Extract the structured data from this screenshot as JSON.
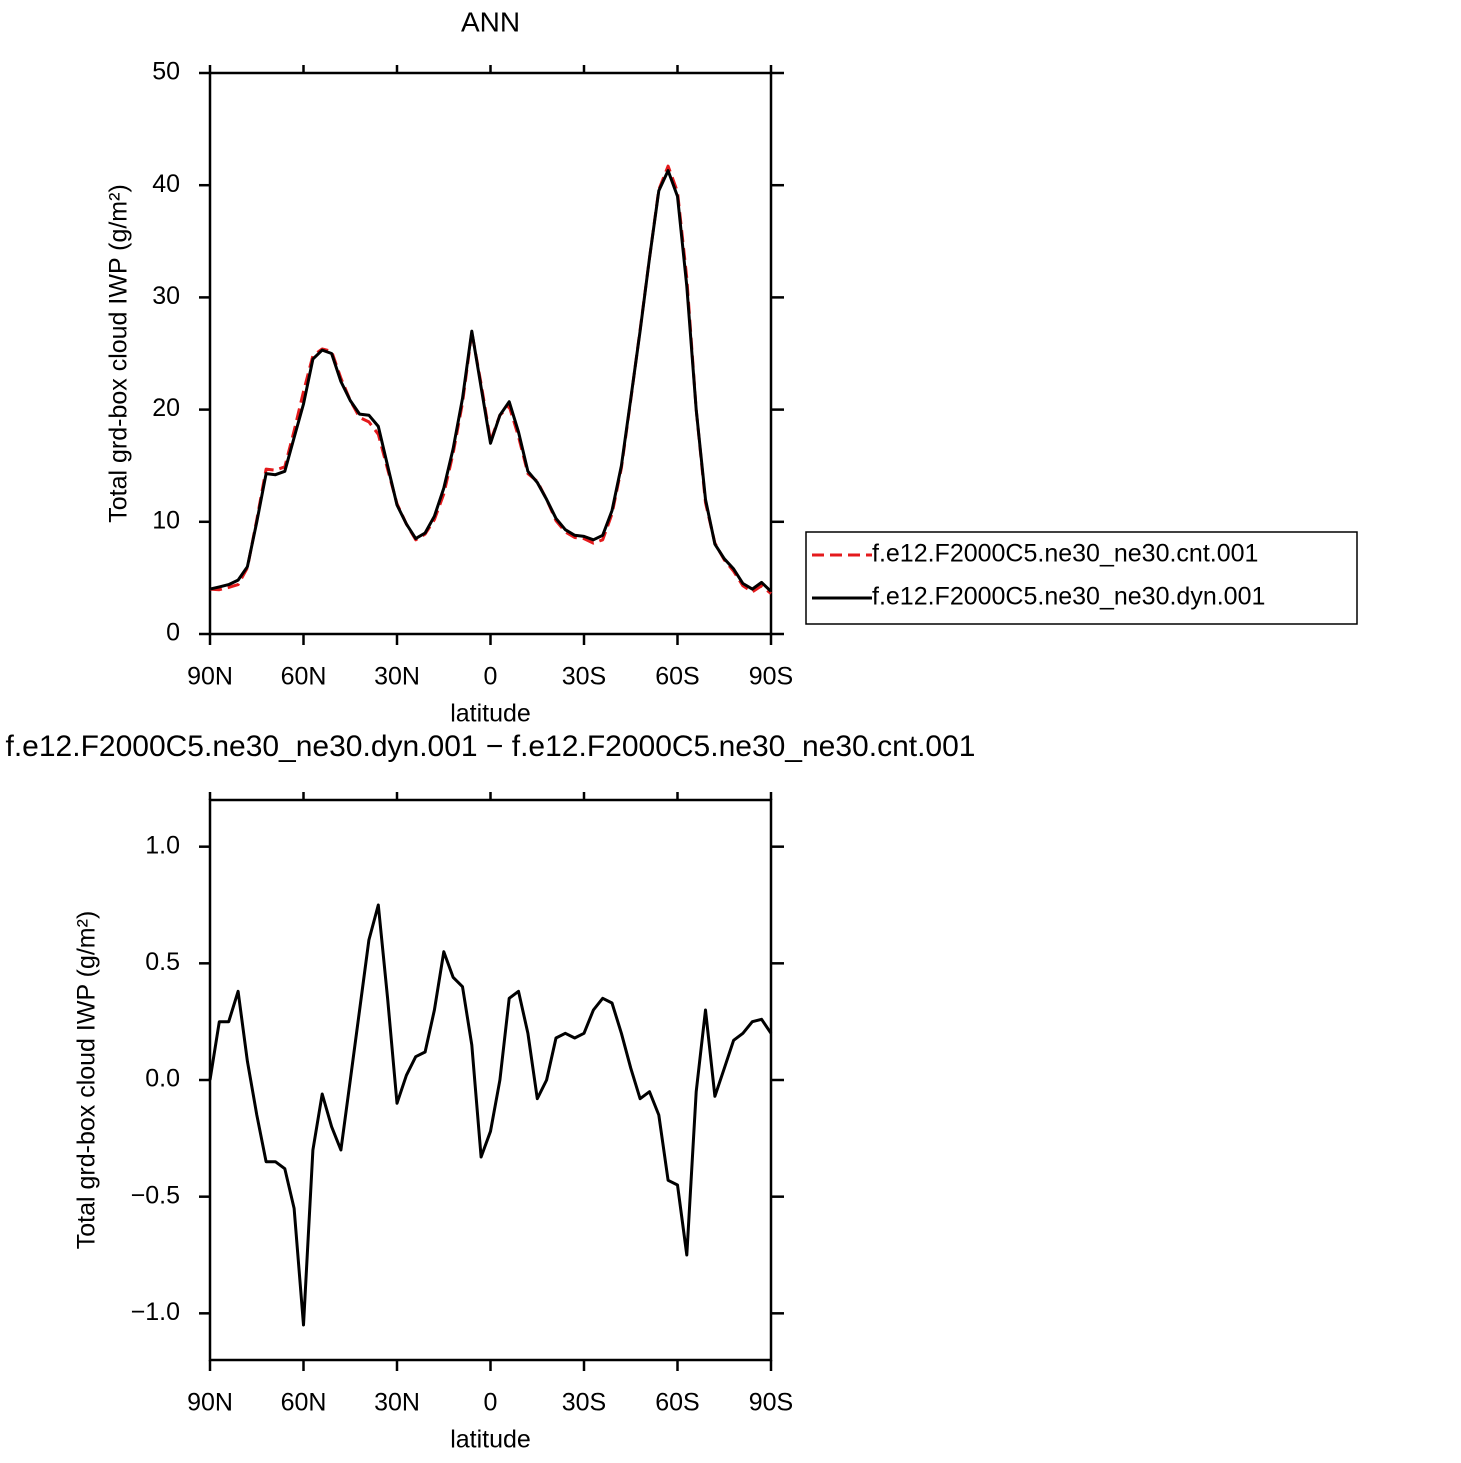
{
  "chart_data": [
    {
      "type": "line",
      "title": "ANN",
      "x_label": "latitude",
      "y_label": "Total grd-box cloud IWP (g/m²)",
      "x": [
        90,
        87,
        84,
        81,
        78,
        75,
        72,
        69,
        66,
        63,
        60,
        57,
        54,
        51,
        48,
        45,
        42,
        39,
        36,
        33,
        30,
        27,
        24,
        21,
        18,
        15,
        12,
        9,
        6,
        3,
        0,
        -3,
        -6,
        -9,
        -12,
        -15,
        -18,
        -21,
        -24,
        -27,
        -30,
        -33,
        -36,
        -39,
        -42,
        -45,
        -48,
        -51,
        -54,
        -57,
        -60,
        -63,
        -66,
        -69,
        -72,
        -75,
        -78,
        -81,
        -84,
        -87,
        -90
      ],
      "series": [
        {
          "name": "f.e12.F2000C5.ne30_ne30.cnt.001",
          "color": "#e41a1c",
          "line_style": "dashed",
          "values": [
            4.0,
            3.95,
            4.15,
            4.4,
            5.9,
            10.2,
            14.7,
            14.6,
            14.9,
            18.1,
            21.6,
            24.8,
            25.4,
            25.2,
            22.8,
            20.8,
            19.3,
            18.9,
            17.8,
            14.7,
            11.6,
            9.8,
            8.4,
            8.9,
            10.2,
            12.5,
            16.1,
            20.6,
            26.9,
            22.3,
            17.2,
            19.5,
            20.3,
            17.6,
            14.3,
            13.6,
            12.0,
            10.1,
            9.1,
            8.6,
            8.5,
            8.1,
            8.4,
            10.7,
            14.8,
            20.9,
            27.1,
            33.5,
            39.6,
            41.7,
            39.4,
            31.7,
            20.0,
            11.7,
            8.1,
            6.6,
            5.6,
            4.3,
            3.75,
            4.3,
            3.6
          ]
        },
        {
          "name": "f.e12.F2000C5.ne30_ne30.dyn.001",
          "color": "#000000",
          "line_style": "solid",
          "values": [
            4.0,
            4.2,
            4.4,
            4.8,
            6.0,
            10.0,
            14.3,
            14.2,
            14.5,
            17.5,
            20.5,
            24.5,
            25.3,
            25.0,
            22.5,
            20.8,
            19.6,
            19.5,
            18.5,
            15.0,
            11.5,
            9.8,
            8.5,
            9.0,
            10.5,
            13.0,
            16.5,
            21.0,
            27.0,
            22.0,
            17.0,
            19.5,
            20.7,
            18.0,
            14.5,
            13.5,
            12.0,
            10.3,
            9.3,
            8.8,
            8.7,
            8.4,
            8.8,
            11.0,
            15.0,
            21.0,
            27.0,
            33.5,
            39.5,
            41.3,
            39.0,
            31.0,
            20.0,
            12.0,
            8.0,
            6.7,
            5.8,
            4.5,
            4.0,
            4.6,
            3.8
          ]
        }
      ],
      "xlim": [
        90,
        -90
      ],
      "xticks": [
        {
          "value": 90,
          "label": "90N"
        },
        {
          "value": 60,
          "label": "60N"
        },
        {
          "value": 30,
          "label": "30N"
        },
        0,
        {
          "value": -30,
          "label": "30S"
        },
        {
          "value": -60,
          "label": "60S"
        },
        {
          "value": -90,
          "label": "90S"
        }
      ],
      "ylim": [
        0,
        50
      ],
      "yticks": [
        0,
        10,
        20,
        30,
        40,
        50
      ],
      "legend": "right"
    },
    {
      "type": "line",
      "title": "f.e12.F2000C5.ne30_ne30.dyn.001 − f.e12.F2000C5.ne30_ne30.cnt.001",
      "x_label": "latitude",
      "y_label": "Total grd-box cloud IWP (g/m²)",
      "x": [
        90,
        87,
        84,
        81,
        78,
        75,
        72,
        69,
        66,
        63,
        60,
        57,
        54,
        51,
        48,
        45,
        42,
        39,
        36,
        33,
        30,
        27,
        24,
        21,
        18,
        15,
        12,
        9,
        6,
        3,
        0,
        -3,
        -6,
        -9,
        -12,
        -15,
        -18,
        -21,
        -24,
        -27,
        -30,
        -33,
        -36,
        -39,
        -42,
        -45,
        -48,
        -51,
        -54,
        -57,
        -60,
        -63,
        -66,
        -69,
        -72,
        -75,
        -78,
        -81,
        -84,
        -87,
        -90
      ],
      "color": "#000000",
      "values": [
        0.0,
        0.25,
        0.25,
        0.38,
        0.08,
        -0.15,
        -0.35,
        -0.35,
        -0.38,
        -0.55,
        -1.05,
        -0.3,
        -0.06,
        -0.2,
        -0.3,
        0.0,
        0.3,
        0.6,
        0.75,
        0.35,
        -0.1,
        0.02,
        0.1,
        0.12,
        0.3,
        0.55,
        0.44,
        0.4,
        0.15,
        -0.33,
        -0.22,
        0.0,
        0.35,
        0.38,
        0.2,
        -0.08,
        0.0,
        0.18,
        0.2,
        0.18,
        0.2,
        0.3,
        0.35,
        0.33,
        0.2,
        0.05,
        -0.08,
        -0.05,
        -0.15,
        -0.43,
        -0.45,
        -0.75,
        -0.05,
        0.3,
        -0.07,
        0.05,
        0.17,
        0.2,
        0.25,
        0.26,
        0.2
      ],
      "xlim": [
        90,
        -90
      ],
      "xticks": [
        {
          "value": 90,
          "label": "90N"
        },
        {
          "value": 60,
          "label": "60N"
        },
        {
          "value": 30,
          "label": "30N"
        },
        0,
        {
          "value": -30,
          "label": "30S"
        },
        {
          "value": -60,
          "label": "60S"
        },
        {
          "value": -90,
          "label": "90S"
        }
      ],
      "ylim": [
        -1.2,
        1.2
      ],
      "yticks": [
        {
          "value": -1,
          "label": "−1.0"
        },
        {
          "value": -0.5,
          "label": "−0.5"
        },
        {
          "value": 0,
          "label": "0.0"
        },
        {
          "value": 0.5,
          "label": "0.5"
        },
        {
          "value": 1,
          "label": "1.0"
        }
      ]
    }
  ]
}
